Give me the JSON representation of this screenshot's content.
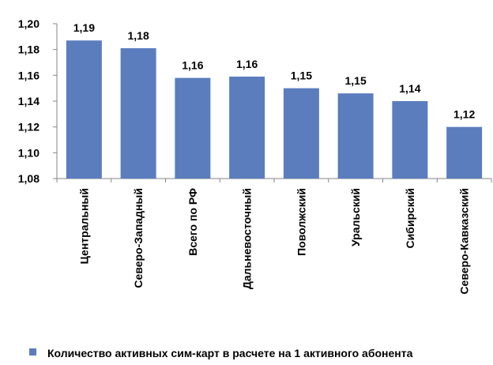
{
  "chart_data": {
    "type": "bar",
    "categories": [
      "Центральный",
      "Северо-Западный",
      "Всего по РФ",
      "Дальневосточный",
      "Поволжский",
      "Уральский",
      "Сибирский",
      "Северо-Кавказский"
    ],
    "series": [
      {
        "name": "Количество активных сим-карт в расчете на 1 активного абонента",
        "values": [
          1.187,
          1.181,
          1.158,
          1.159,
          1.15,
          1.146,
          1.14,
          1.12
        ],
        "data_labels": [
          "1,19",
          "1,18",
          "1,16",
          "1,16",
          "1,15",
          "1,15",
          "1,14",
          "1,12"
        ]
      }
    ],
    "ylim": [
      1.08,
      1.2
    ],
    "yticks": [
      "1,08",
      "1,10",
      "1,12",
      "1,14",
      "1,16",
      "1,18",
      "1,20"
    ],
    "ytick_values": [
      1.08,
      1.1,
      1.12,
      1.14,
      1.16,
      1.18,
      1.2
    ],
    "grid": false,
    "legend_position": "bottom",
    "colors": {
      "bar": "#5B7DBE",
      "axis": "#868686"
    }
  }
}
